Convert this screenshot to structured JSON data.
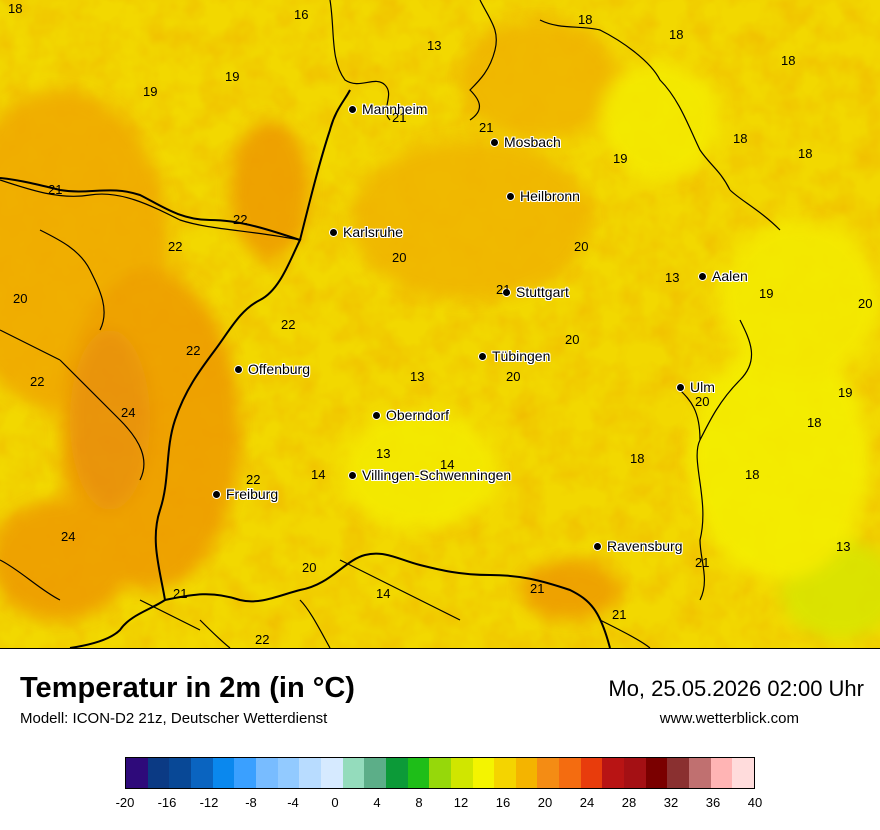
{
  "cities": [
    {
      "name": "Mannheim"
    },
    {
      "name": "Mosbach"
    },
    {
      "name": "Heilbronn"
    },
    {
      "name": "Karlsruhe"
    },
    {
      "name": "Stuttgart"
    },
    {
      "name": "Aalen"
    },
    {
      "name": "Tübingen"
    },
    {
      "name": "Offenburg"
    },
    {
      "name": "Ulm"
    },
    {
      "name": "Oberndorf"
    },
    {
      "name": "Villingen-Schwenningen"
    },
    {
      "name": "Freiburg"
    },
    {
      "name": "Ravensburg"
    }
  ],
  "temperature_values": [
    "18",
    "16",
    "13",
    "18",
    "18",
    "18",
    "19",
    "19",
    "21",
    "21",
    "18",
    "19",
    "18",
    "21",
    "22",
    "22",
    "20",
    "20",
    "20",
    "13",
    "19",
    "21",
    "20",
    "22",
    "20",
    "22",
    "20",
    "13",
    "20",
    "22",
    "18",
    "24",
    "18",
    "13",
    "14",
    "14",
    "18",
    "22",
    "13",
    "24",
    "19",
    "21",
    "20",
    "14",
    "21",
    "21",
    "21",
    "22"
  ],
  "footer": {
    "title": "Temperatur in 2m (in °C)",
    "model": "Modell: ICON-D2 21z, Deutscher Wetterdienst",
    "datetime": "Mo, 25.05.2026 02:00 Uhr",
    "website": "www.wetterblick.com"
  },
  "colorbar": {
    "ticks": [
      "-20",
      "-16",
      "-12",
      "-8",
      "-4",
      "0",
      "4",
      "8",
      "12",
      "16",
      "20",
      "24",
      "28",
      "32",
      "36",
      "40"
    ],
    "colors": [
      "#2e0a7a",
      "#0b3a84",
      "#084896",
      "#0a64c0",
      "#0a88ee",
      "#3aa0ff",
      "#78bcff",
      "#92caff",
      "#b8dcff",
      "#d6eaff",
      "#94dcbc",
      "#5cae88",
      "#0c9a38",
      "#1ebe18",
      "#96d80a",
      "#d0e600",
      "#f4f400",
      "#f4d400",
      "#f4b400",
      "#f48c14",
      "#f46c10",
      "#e83c0c",
      "#b81414",
      "#a41014",
      "#7a0000",
      "#8a3030",
      "#c07070",
      "#ffb4b4",
      "#ffdcdc"
    ]
  }
}
